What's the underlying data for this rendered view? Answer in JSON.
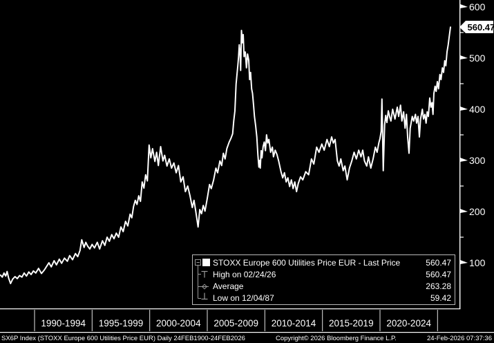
{
  "chart_data": {
    "type": "line",
    "title": "STOXX Europe 600 Utilities Price EUR",
    "legend_position": "bottom-right",
    "grid": false,
    "background_color": "#000000",
    "series": [
      {
        "name": "STOXX Europe 600 Utilities Price EUR - Last Price",
        "color": "#ffffff",
        "points": [
          [
            1987.05,
            76
          ],
          [
            1987.2,
            72
          ],
          [
            1987.35,
            80
          ],
          [
            1987.5,
            74
          ],
          [
            1987.62,
            83
          ],
          [
            1987.75,
            70
          ],
          [
            1987.92,
            59.42
          ],
          [
            1988.1,
            68
          ],
          [
            1988.3,
            73
          ],
          [
            1988.5,
            69
          ],
          [
            1988.7,
            75
          ],
          [
            1988.9,
            72
          ],
          [
            1989.1,
            80
          ],
          [
            1989.3,
            74
          ],
          [
            1989.5,
            82
          ],
          [
            1989.7,
            77
          ],
          [
            1989.9,
            84
          ],
          [
            1990.1,
            80
          ],
          [
            1990.35,
            89
          ],
          [
            1990.6,
            79
          ],
          [
            1990.85,
            86
          ],
          [
            1991.05,
            93
          ],
          [
            1991.25,
            100
          ],
          [
            1991.45,
            92
          ],
          [
            1991.7,
            104
          ],
          [
            1991.9,
            96
          ],
          [
            1992.15,
            107
          ],
          [
            1992.35,
            99
          ],
          [
            1992.6,
            109
          ],
          [
            1992.85,
            103
          ],
          [
            1993.05,
            114
          ],
          [
            1993.3,
            106
          ],
          [
            1993.55,
            118
          ],
          [
            1993.75,
            112
          ],
          [
            1993.95,
            124
          ],
          [
            1994.1,
            145
          ],
          [
            1994.3,
            130
          ],
          [
            1994.45,
            140
          ],
          [
            1994.6,
            133
          ],
          [
            1994.8,
            127
          ],
          [
            1995.0,
            136
          ],
          [
            1995.2,
            129
          ],
          [
            1995.45,
            140
          ],
          [
            1995.65,
            127
          ],
          [
            1995.9,
            143
          ],
          [
            1996.1,
            134
          ],
          [
            1996.3,
            150
          ],
          [
            1996.5,
            142
          ],
          [
            1996.7,
            155
          ],
          [
            1996.9,
            147
          ],
          [
            1997.1,
            158
          ],
          [
            1997.3,
            150
          ],
          [
            1997.5,
            170
          ],
          [
            1997.7,
            161
          ],
          [
            1997.9,
            181
          ],
          [
            1998.1,
            172
          ],
          [
            1998.3,
            195
          ],
          [
            1998.45,
            188
          ],
          [
            1998.6,
            210
          ],
          [
            1998.75,
            222
          ],
          [
            1998.9,
            214
          ],
          [
            1999.05,
            231
          ],
          [
            1999.2,
            220
          ],
          [
            1999.35,
            258
          ],
          [
            1999.5,
            246
          ],
          [
            1999.65,
            272
          ],
          [
            1999.8,
            260
          ],
          [
            1999.95,
            330
          ],
          [
            2000.1,
            305
          ],
          [
            2000.25,
            323
          ],
          [
            2000.45,
            298
          ],
          [
            2000.6,
            316
          ],
          [
            2000.75,
            290
          ],
          [
            2000.95,
            327
          ],
          [
            2001.15,
            299
          ],
          [
            2001.3,
            310
          ],
          [
            2001.5,
            289
          ],
          [
            2001.7,
            303
          ],
          [
            2001.9,
            285
          ],
          [
            2002.1,
            295
          ],
          [
            2002.3,
            276
          ],
          [
            2002.5,
            290
          ],
          [
            2002.7,
            258
          ],
          [
            2002.9,
            268
          ],
          [
            2003.1,
            239
          ],
          [
            2003.3,
            250
          ],
          [
            2003.5,
            231
          ],
          [
            2003.7,
            208
          ],
          [
            2003.85,
            222
          ],
          [
            2004.0,
            201
          ],
          [
            2004.2,
            170
          ],
          [
            2004.35,
            204
          ],
          [
            2004.5,
            196
          ],
          [
            2004.65,
            212
          ],
          [
            2004.8,
            201
          ],
          [
            2005.0,
            226
          ],
          [
            2005.2,
            253
          ],
          [
            2005.35,
            245
          ],
          [
            2005.55,
            262
          ],
          [
            2005.75,
            285
          ],
          [
            2005.9,
            276
          ],
          [
            2006.1,
            299
          ],
          [
            2006.25,
            290
          ],
          [
            2006.4,
            314
          ],
          [
            2006.55,
            303
          ],
          [
            2006.7,
            323
          ],
          [
            2006.9,
            336
          ],
          [
            2007.05,
            343
          ],
          [
            2007.2,
            352
          ],
          [
            2007.3,
            377
          ],
          [
            2007.4,
            397
          ],
          [
            2007.5,
            449
          ],
          [
            2007.58,
            468
          ],
          [
            2007.65,
            485
          ],
          [
            2007.72,
            503
          ],
          [
            2007.78,
            526
          ],
          [
            2007.85,
            508
          ],
          [
            2007.9,
            476
          ],
          [
            2007.97,
            554
          ],
          [
            2008.05,
            530
          ],
          [
            2008.12,
            546
          ],
          [
            2008.2,
            503
          ],
          [
            2008.3,
            512
          ],
          [
            2008.4,
            481
          ],
          [
            2008.5,
            508
          ],
          [
            2008.6,
            496
          ],
          [
            2008.68,
            458
          ],
          [
            2008.76,
            472
          ],
          [
            2008.85,
            440
          ],
          [
            2008.93,
            431
          ],
          [
            2009.02,
            408
          ],
          [
            2009.1,
            386
          ],
          [
            2009.2,
            368
          ],
          [
            2009.3,
            346
          ],
          [
            2009.4,
            310
          ],
          [
            2009.48,
            287
          ],
          [
            2009.55,
            300
          ],
          [
            2009.6,
            285
          ],
          [
            2009.68,
            319
          ],
          [
            2009.75,
            305
          ],
          [
            2009.85,
            327
          ],
          [
            2009.95,
            336
          ],
          [
            2010.05,
            319
          ],
          [
            2010.15,
            350
          ],
          [
            2010.25,
            334
          ],
          [
            2010.35,
            341
          ],
          [
            2010.5,
            316
          ],
          [
            2010.65,
            326
          ],
          [
            2010.75,
            307
          ],
          [
            2010.9,
            320
          ],
          [
            2011.05,
            312
          ],
          [
            2011.2,
            299
          ],
          [
            2011.4,
            278
          ],
          [
            2011.55,
            266
          ],
          [
            2011.7,
            276
          ],
          [
            2011.85,
            258
          ],
          [
            2012.0,
            266
          ],
          [
            2012.15,
            249
          ],
          [
            2012.3,
            262
          ],
          [
            2012.45,
            245
          ],
          [
            2012.6,
            258
          ],
          [
            2012.75,
            239
          ],
          [
            2012.9,
            255
          ],
          [
            2013.1,
            268
          ],
          [
            2013.3,
            262
          ],
          [
            2013.55,
            278
          ],
          [
            2013.8,
            272
          ],
          [
            2014.05,
            303
          ],
          [
            2014.25,
            293
          ],
          [
            2014.5,
            326
          ],
          [
            2014.7,
            316
          ],
          [
            2014.95,
            332
          ],
          [
            2015.15,
            320
          ],
          [
            2015.4,
            341
          ],
          [
            2015.6,
            327
          ],
          [
            2015.8,
            346
          ],
          [
            2015.95,
            334
          ],
          [
            2016.1,
            341
          ],
          [
            2016.3,
            299
          ],
          [
            2016.45,
            289
          ],
          [
            2016.6,
            303
          ],
          [
            2016.8,
            280
          ],
          [
            2016.95,
            289
          ],
          [
            2017.15,
            262
          ],
          [
            2017.35,
            285
          ],
          [
            2017.55,
            299
          ],
          [
            2017.75,
            316
          ],
          [
            2017.95,
            303
          ],
          [
            2018.15,
            320
          ],
          [
            2018.35,
            307
          ],
          [
            2018.5,
            320
          ],
          [
            2018.65,
            299
          ],
          [
            2018.85,
            289
          ],
          [
            2019.0,
            307
          ],
          [
            2019.2,
            285
          ],
          [
            2019.4,
            303
          ],
          [
            2019.6,
            326
          ],
          [
            2019.75,
            316
          ],
          [
            2019.9,
            334
          ],
          [
            2020.0,
            343
          ],
          [
            2020.1,
            357
          ],
          [
            2020.17,
            420
          ],
          [
            2020.28,
            280
          ],
          [
            2020.4,
            370
          ],
          [
            2020.5,
            388
          ],
          [
            2020.6,
            374
          ],
          [
            2020.72,
            397
          ],
          [
            2020.85,
            384
          ],
          [
            2020.95,
            377
          ],
          [
            2021.1,
            400
          ],
          [
            2021.3,
            381
          ],
          [
            2021.5,
            404
          ],
          [
            2021.62,
            386
          ],
          [
            2021.78,
            408
          ],
          [
            2021.9,
            377
          ],
          [
            2022.05,
            395
          ],
          [
            2022.18,
            363
          ],
          [
            2022.3,
            390
          ],
          [
            2022.4,
            346
          ],
          [
            2022.52,
            314
          ],
          [
            2022.62,
            363
          ],
          [
            2022.8,
            386
          ],
          [
            2022.92,
            377
          ],
          [
            2023.08,
            390
          ],
          [
            2023.18,
            373
          ],
          [
            2023.3,
            386
          ],
          [
            2023.42,
            346
          ],
          [
            2023.52,
            381
          ],
          [
            2023.68,
            400
          ],
          [
            2023.78,
            381
          ],
          [
            2023.9,
            390
          ],
          [
            2024.0,
            373
          ],
          [
            2024.1,
            395
          ],
          [
            2024.2,
            386
          ],
          [
            2024.32,
            422
          ],
          [
            2024.42,
            404
          ],
          [
            2024.52,
            413
          ],
          [
            2024.6,
            390
          ],
          [
            2024.68,
            431
          ],
          [
            2024.78,
            445
          ],
          [
            2024.88,
            435
          ],
          [
            2024.98,
            454
          ],
          [
            2025.08,
            440
          ],
          [
            2025.2,
            468
          ],
          [
            2025.3,
            458
          ],
          [
            2025.42,
            481
          ],
          [
            2025.52,
            472
          ],
          [
            2025.62,
            495
          ],
          [
            2025.72,
            485
          ],
          [
            2025.82,
            512
          ],
          [
            2025.92,
            526
          ],
          [
            2026.0,
            540
          ],
          [
            2026.12,
            560.47
          ]
        ]
      }
    ],
    "x_axis": {
      "year_range": [
        1987.0,
        2026.9
      ],
      "bucket_labels": [
        "1990-1994",
        "1995-1999",
        "2000-2004",
        "2005-2009",
        "2010-2014",
        "2015-2019",
        "2020-2024"
      ],
      "bucket_boundaries": [
        1990,
        1995,
        2000,
        2005,
        2010,
        2015,
        2020,
        2025
      ]
    },
    "y_axis": {
      "side": "right",
      "major_ticks": [
        100,
        200,
        300,
        400,
        500,
        600
      ],
      "minor_ticks": [
        150,
        250,
        350,
        450,
        550
      ],
      "value_range": [
        10.8,
        613.5
      ]
    },
    "last_price": {
      "value": 560.47,
      "display": "560.47"
    },
    "stats": {
      "last_price": "560.47",
      "high": {
        "date": "02/24/26",
        "value": "560.47"
      },
      "average": "263.28",
      "low": {
        "date": "12/04/87",
        "value": "59.42"
      }
    }
  },
  "legend": {
    "rows": [
      {
        "icon": "series-swatch",
        "label": "STOXX Europe 600 Utilities Price EUR - Last Price",
        "value": "560.47"
      },
      {
        "icon": "high-marker",
        "label": "High on 02/24/26",
        "value": "560.47"
      },
      {
        "icon": "average-marker",
        "label": "Average",
        "value": "263.28"
      },
      {
        "icon": "low-marker",
        "label": "Low on 12/04/87",
        "value": "59.42"
      }
    ]
  },
  "footer": {
    "left": "SX6P Index (STOXX Europe 600 Utilities Price EUR) Daily 24FEB1900-24FEB2026",
    "center": "Copyright© 2026 Bloomberg Finance L.P.",
    "right": "24-Feb-2026 07:37:36"
  }
}
